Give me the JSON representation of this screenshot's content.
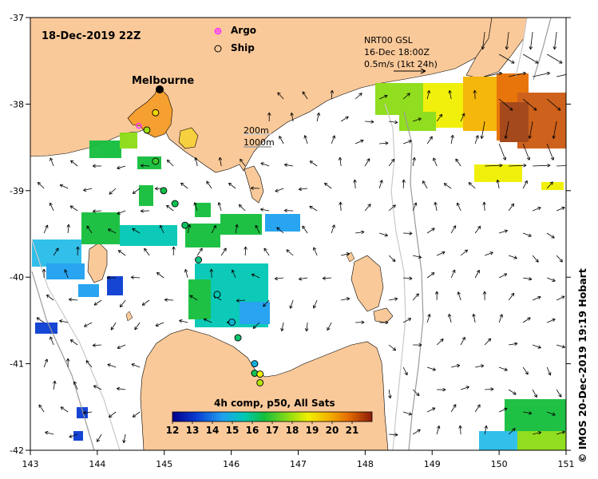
{
  "map": {
    "datetime": "18-Dec-2019 22Z",
    "legend": {
      "argo": "Argo",
      "ship": "Ship"
    },
    "city": "Melbourne",
    "currents": {
      "line1": "NRT00 GSL",
      "line2": "16-Dec 18:00Z",
      "line3": "0.5m/s (1kt 24h)"
    },
    "depth_contours": {
      "shallow": "200m",
      "deep": "1000m"
    },
    "colorbar": {
      "title": "4h comp, p50, All Sats",
      "ticks": [
        "12",
        "13",
        "14",
        "15",
        "16",
        "17",
        "18",
        "19",
        "20",
        "21"
      ],
      "min": 12,
      "max": 22
    },
    "credit": "© IMOS 20-Dec-2019 19:19 Hobart",
    "x_ticks": [
      "143",
      "144",
      "145",
      "146",
      "147",
      "148",
      "149",
      "150",
      "151"
    ],
    "y_ticks": [
      "-37",
      "-38",
      "-39",
      "-40",
      "-41",
      "-42"
    ],
    "lon_range": [
      143,
      151
    ],
    "lat_range": [
      -42,
      -37
    ],
    "colors": {
      "land": "#fac999",
      "ocean": "#ffffff",
      "argo": "#ff33ff"
    },
    "ships": [
      {
        "lon": 144.87,
        "lat": -38.1,
        "sst": 19.2
      },
      {
        "lon": 144.74,
        "lat": -38.3,
        "sst": 18.0
      },
      {
        "lon": 144.87,
        "lat": -38.66,
        "sst": 17.0
      },
      {
        "lon": 144.99,
        "lat": -39.0,
        "sst": 16.5
      },
      {
        "lon": 145.16,
        "lat": -39.15,
        "sst": 16.4
      },
      {
        "lon": 145.31,
        "lat": -39.4,
        "sst": 16.3
      },
      {
        "lon": 145.51,
        "lat": -39.8,
        "sst": 16.0
      },
      {
        "lon": 145.79,
        "lat": -40.2,
        "sst": 15.6
      },
      {
        "lon": 146.01,
        "lat": -40.52,
        "sst": 15.0
      },
      {
        "lon": 146.1,
        "lat": -40.7,
        "sst": 16.2
      },
      {
        "lon": 146.35,
        "lat": -41.0,
        "sst": 14.9
      },
      {
        "lon": 146.35,
        "lat": -41.11,
        "sst": 16.4
      },
      {
        "lon": 146.43,
        "lat": -41.12,
        "sst": 18.8
      },
      {
        "lon": 146.43,
        "lat": -41.22,
        "sst": 18.2
      }
    ],
    "argo_floats": [
      {
        "lon": 144.62,
        "lat": -38.25
      }
    ]
  }
}
